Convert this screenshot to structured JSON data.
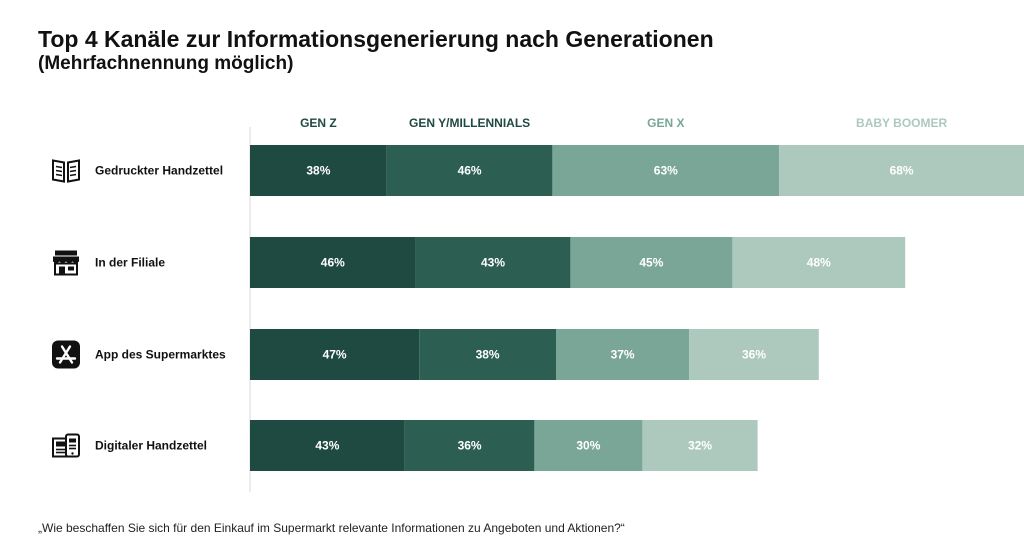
{
  "title": "Top 4 Kanäle zur Informationsgenerierung nach Generationen",
  "subtitle": "(Mehrfachnennung möglich)",
  "footnote": "„Wie beschaffen Sie sich für den Einkauf im Supermarkt relevante Informationen zu Angeboten und Aktionen?“",
  "colors": {
    "gen_z": "#1f4a42",
    "gen_y": "#2d5e52",
    "gen_x": "#7aa698",
    "boomer": "#adc9bd",
    "legend_z": "#1f4a42",
    "legend_y": "#1f4a42",
    "legend_x": "#7aa698",
    "legend_boomer": "#adc9bd"
  },
  "chart_data": {
    "type": "bar",
    "orientation": "horizontal",
    "stacked": true,
    "categories": [
      "Gedruckter Handzettel",
      "In der Filiale",
      "App des Supermarktes",
      "Digitaler Handzettel"
    ],
    "category_icons": [
      "newspaper-icon",
      "store-icon",
      "app-store-icon",
      "digital-flyer-icon"
    ],
    "series": [
      {
        "name": "GEN Z",
        "values": [
          38,
          46,
          47,
          43
        ],
        "labels": [
          "38%",
          "46%",
          "47%",
          "43%"
        ]
      },
      {
        "name": "GEN Y/MILLENNIALS",
        "values": [
          46,
          43,
          38,
          36
        ],
        "labels": [
          "46%",
          "43%",
          "38%",
          "36%"
        ]
      },
      {
        "name": "GEN X",
        "values": [
          63,
          45,
          37,
          30
        ],
        "labels": [
          "63%",
          "45%",
          "37%",
          "30%"
        ]
      },
      {
        "name": "BABY BOOMER",
        "values": [
          68,
          48,
          36,
          32
        ],
        "labels": [
          "68%",
          "48%",
          "36%",
          "32%"
        ]
      }
    ],
    "legend_position": "top",
    "grid": false
  }
}
